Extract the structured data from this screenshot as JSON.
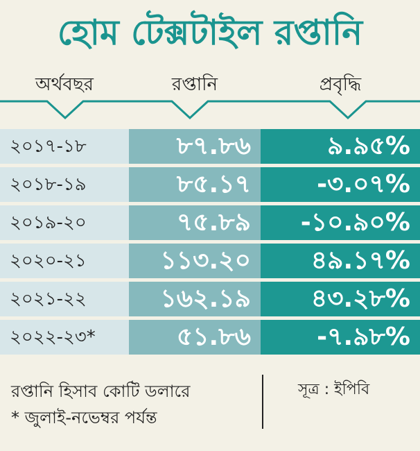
{
  "title": "হোম টেক্সটাইল রপ্তানি",
  "headers": {
    "year": "অর্থবছর",
    "export": "রপ্তানি",
    "growth": "প্রবৃদ্ধি"
  },
  "colors": {
    "title": "#1a948f",
    "year_cell": "#d7e6e9",
    "export_cell": "#86b9bd",
    "growth_cell": "#1d9892",
    "background": "#f3f1e6"
  },
  "chart_data": {
    "type": "table",
    "columns": [
      "অর্থবছর",
      "রপ্তানি",
      "প্রবৃদ্ধি"
    ],
    "rows": [
      {
        "year": "২০১৭-১৮",
        "export": "৮৭.৮৬",
        "growth": "৯.৯৫%"
      },
      {
        "year": "২০১৮-১৯",
        "export": "৮৫.১৭",
        "growth": "-৩.০৭%"
      },
      {
        "year": "২০১৯-২০",
        "export": "৭৫.৮৯",
        "growth": "-১০.৯০%"
      },
      {
        "year": "২০২০-২১",
        "export": "১১৩.২০",
        "growth": "৪৯.১৭%"
      },
      {
        "year": "২০২১-২২",
        "export": "১৬২.১৯",
        "growth": "৪৩.২৮%"
      },
      {
        "year": "২০২২-২৩*",
        "export": "৫১.৮৬",
        "growth": "-৭.৯৮%"
      }
    ]
  },
  "footer": {
    "note1": "রপ্তানি হিসাব কোটি ডলারে",
    "note2": "* জুলাই-নভেম্বর পর্যন্ত",
    "source": "সূত্র : ইপিবি"
  }
}
